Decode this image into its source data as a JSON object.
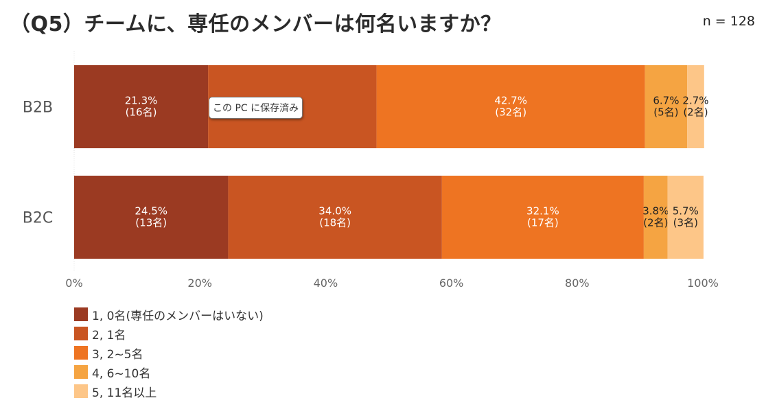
{
  "title": "（Q5）チームに、専任のメンバーは何名いますか？",
  "sample_size": "n = 128",
  "tooltip": "この PC に保存済み",
  "chart_data": {
    "type": "bar",
    "orientation": "horizontal-stacked-100",
    "categories": [
      "B2B",
      "B2C"
    ],
    "series": [
      {
        "name": "1, 0名(専任のメンバーはいない)",
        "color": "#9b3a22",
        "values": [
          21.3,
          24.5
        ],
        "labels": [
          "21.3%",
          "24.5%"
        ],
        "counts": [
          "(16名)",
          "(13名)"
        ]
      },
      {
        "name": "2, 1名",
        "color": "#c95522",
        "values": [
          26.8,
          34.0
        ],
        "labels": [
          "",
          "34.0%"
        ],
        "counts": [
          "",
          "(18名)"
        ]
      },
      {
        "name": "3, 2~5名",
        "color": "#ee7422",
        "values": [
          42.7,
          32.1
        ],
        "labels": [
          "42.7%",
          "32.1%"
        ],
        "counts": [
          "(32名)",
          "(17名)"
        ]
      },
      {
        "name": "4, 6~10名",
        "color": "#f5a442",
        "values": [
          6.7,
          3.8
        ],
        "labels": [
          "6.7%",
          "3.8%"
        ],
        "counts": [
          "(5名)",
          "(2名)"
        ]
      },
      {
        "name": "5, 11名以上",
        "color": "#fdc688",
        "values": [
          2.7,
          5.7
        ],
        "labels": [
          "2.7%",
          "5.7%"
        ],
        "counts": [
          "(2名)",
          "(3名)"
        ]
      }
    ],
    "xlim": [
      0,
      100
    ],
    "x_ticks": [
      "0%",
      "20%",
      "40%",
      "60%",
      "80%",
      "100%"
    ],
    "legend_position": "bottom-left",
    "grid": false
  }
}
